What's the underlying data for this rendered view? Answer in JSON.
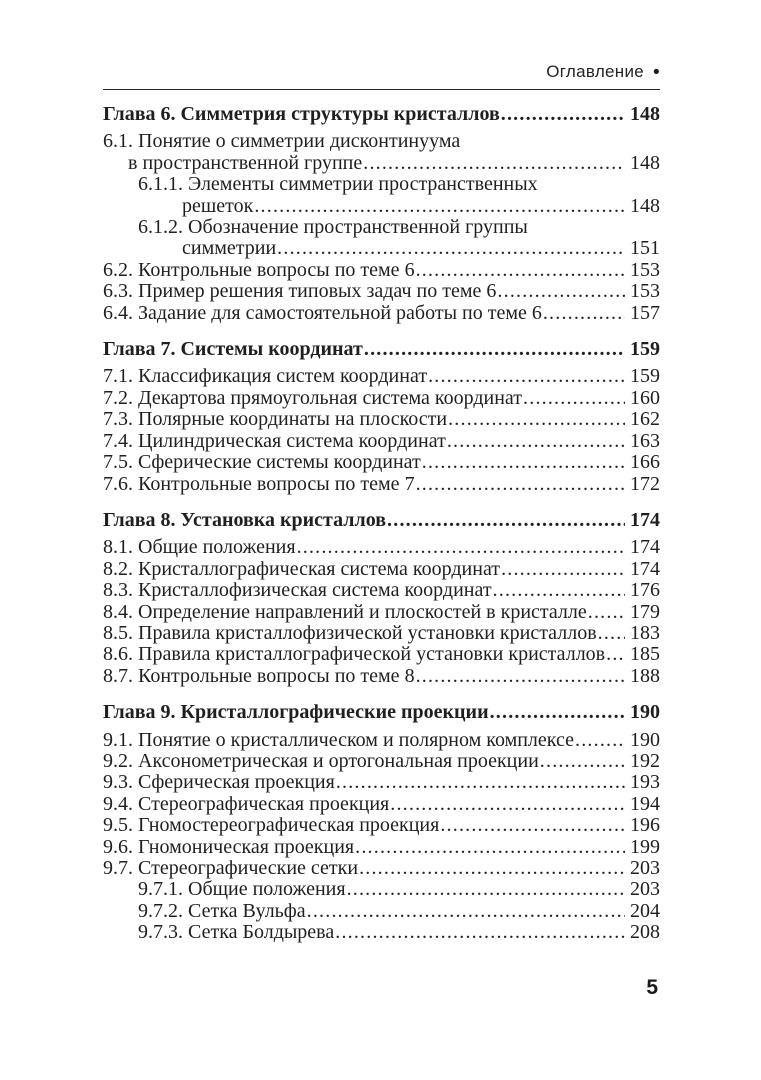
{
  "header": {
    "title": "Оглавление",
    "bullet": "•"
  },
  "footer": {
    "page_number": "5"
  },
  "toc": {
    "chapters": [
      {
        "title": "Глава 6. Симметрия структуры кристаллов",
        "page": "148",
        "entries": [
          {
            "level": 1,
            "lines": [
              "6.1. Понятие о симметрии дисконтинуума",
              "в пространственной группе"
            ],
            "page": "148"
          },
          {
            "level": 2,
            "lines": [
              "6.1.1. Элементы симметрии пространственных",
              "решеток"
            ],
            "page": "148"
          },
          {
            "level": 2,
            "lines": [
              "6.1.2. Обозначение пространственной группы",
              "симметрии"
            ],
            "page": "151"
          },
          {
            "level": 1,
            "lines": [
              "6.2. Контрольные вопросы по теме 6"
            ],
            "page": "153"
          },
          {
            "level": 1,
            "lines": [
              "6.3. Пример решения типовых задач по теме 6"
            ],
            "page": "153"
          },
          {
            "level": 1,
            "lines": [
              "6.4. Задание для самостоятельной работы по теме 6"
            ],
            "page": "157"
          }
        ]
      },
      {
        "title": "Глава 7. Системы координат",
        "page": "159",
        "entries": [
          {
            "level": 1,
            "lines": [
              "7.1. Классификация систем координат"
            ],
            "page": "159"
          },
          {
            "level": 1,
            "lines": [
              "7.2. Декартова прямоугольная система координат"
            ],
            "page": "160"
          },
          {
            "level": 1,
            "lines": [
              "7.3. Полярные координаты на плоскости"
            ],
            "page": "162"
          },
          {
            "level": 1,
            "lines": [
              "7.4. Цилиндрическая система координат"
            ],
            "page": "163"
          },
          {
            "level": 1,
            "lines": [
              "7.5. Сферические системы координат"
            ],
            "page": "166"
          },
          {
            "level": 1,
            "lines": [
              "7.6. Контрольные вопросы по теме 7"
            ],
            "page": "172"
          }
        ]
      },
      {
        "title": "Глава 8. Установка кристаллов",
        "page": "174",
        "entries": [
          {
            "level": 1,
            "lines": [
              "8.1. Общие положения"
            ],
            "page": "174"
          },
          {
            "level": 1,
            "lines": [
              "8.2. Кристаллографическая система координат"
            ],
            "page": "174"
          },
          {
            "level": 1,
            "lines": [
              "8.3. Кристаллофизическая система координат"
            ],
            "page": "176"
          },
          {
            "level": 1,
            "lines": [
              "8.4. Определение направлений и плоскостей в кристалле"
            ],
            "page": "179"
          },
          {
            "level": 1,
            "lines": [
              "8.5. Правила кристаллофизической установки кристаллов"
            ],
            "page": "183"
          },
          {
            "level": 1,
            "lines": [
              "8.6. Правила кристаллографической установки кристаллов"
            ],
            "page": "185"
          },
          {
            "level": 1,
            "lines": [
              "8.7. Контрольные вопросы по теме 8"
            ],
            "page": "188"
          }
        ]
      },
      {
        "title": "Глава 9. Кристаллографические проекции",
        "page": "190",
        "entries": [
          {
            "level": 1,
            "lines": [
              "9.1. Понятие о кристаллическом и полярном комплексе"
            ],
            "page": "190"
          },
          {
            "level": 1,
            "lines": [
              "9.2. Аксонометрическая и ортогональная проекции"
            ],
            "page": "192"
          },
          {
            "level": 1,
            "lines": [
              "9.3. Сферическая проекция"
            ],
            "page": "193"
          },
          {
            "level": 1,
            "lines": [
              "9.4. Стереографическая проекция"
            ],
            "page": "194"
          },
          {
            "level": 1,
            "lines": [
              "9.5. Гномостереографическая проекция"
            ],
            "page": "196"
          },
          {
            "level": 1,
            "lines": [
              "9.6. Гномоническая проекция"
            ],
            "page": "199"
          },
          {
            "level": 1,
            "lines": [
              "9.7. Стереографические сетки"
            ],
            "page": "203"
          },
          {
            "level": 2,
            "lines": [
              "9.7.1. Общие положения"
            ],
            "page": "203"
          },
          {
            "level": 2,
            "lines": [
              "9.7.2. Сетка Вульфа"
            ],
            "page": "204"
          },
          {
            "level": 2,
            "lines": [
              "9.7.3. Сетка Болдырева"
            ],
            "page": "208"
          }
        ]
      }
    ]
  }
}
